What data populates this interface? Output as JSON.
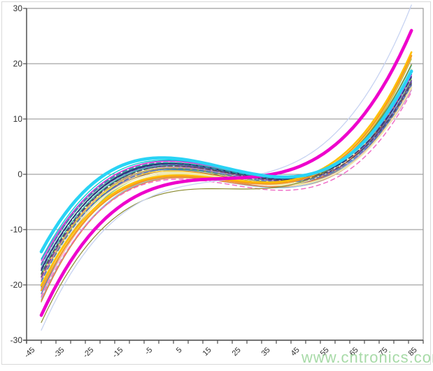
{
  "watermark": {
    "text": "www.cntronics.com",
    "color": "#98d498"
  },
  "chart_data": {
    "type": "line",
    "title": "",
    "xlabel": "",
    "ylabel": "",
    "xlim": [
      -45,
      90
    ],
    "ylim": [
      -30,
      30
    ],
    "grid": "horizontal",
    "legend": "none",
    "x_tick_step": 5,
    "x_label_ticks": [
      -45,
      -35,
      -25,
      -15,
      -5,
      5,
      15,
      25,
      35,
      45,
      55,
      65,
      75,
      85
    ],
    "y_ticks": [
      30,
      20,
      10,
      0,
      -10,
      -20,
      -30
    ],
    "axis_color": "#4d4d4d",
    "grid_color": "#8c8c8c",
    "frame_color": "#9a9a9a",
    "data_x_range": [
      -40,
      86
    ],
    "anchors_x": [
      -40,
      5,
      42,
      85
    ],
    "series_note": "Each series is a smooth cubic curve; y values given at anchor temperatures -40, 5, 42, 85 C",
    "series": [
      {
        "name": "blue",
        "color": "#3b6fd4",
        "width": 1.3,
        "dash": "",
        "y": [
          -21.6,
          0.8,
          -1.6,
          15.6
        ]
      },
      {
        "name": "royal-blue",
        "color": "#2f5496",
        "width": 1.3,
        "dash": "",
        "y": [
          -17.1,
          1.9,
          -0.8,
          16.3
        ]
      },
      {
        "name": "steel-blue",
        "color": "#8496b8",
        "width": 1.3,
        "dash": "",
        "y": [
          -16.3,
          2.1,
          -0.65,
          15.3
        ]
      },
      {
        "name": "dark-gray",
        "color": "#5a5a5a",
        "width": 1.3,
        "dash": "",
        "y": [
          -17.9,
          1.6,
          -1.0,
          16.0
        ]
      },
      {
        "name": "gray",
        "color": "#9e9e9e",
        "width": 1.2,
        "dash": "",
        "y": [
          -19.1,
          1.2,
          -1.25,
          14.9
        ]
      },
      {
        "name": "teal",
        "color": "#2fb8a8",
        "width": 1.4,
        "dash": "",
        "y": [
          -18.0,
          1.55,
          -0.9,
          18.6
        ]
      },
      {
        "name": "green",
        "color": "#3fae49",
        "width": 1.3,
        "dash": "",
        "y": [
          -19.9,
          0.95,
          -1.45,
          17.3
        ]
      },
      {
        "name": "light-green",
        "color": "#a4d65e",
        "width": 1.2,
        "dash": "",
        "y": [
          -21.1,
          0.45,
          -1.9,
          16.2
        ]
      },
      {
        "name": "purple",
        "color": "#7e5fa8",
        "width": 1.4,
        "dash": "",
        "y": [
          -20.6,
          1.05,
          -1.6,
          15.1
        ]
      },
      {
        "name": "violet",
        "color": "#9b59d0",
        "width": 1.3,
        "dash": "",
        "y": [
          -15.6,
          2.45,
          -0.45,
          14.6
        ]
      },
      {
        "name": "plum",
        "color": "#ce7bc9",
        "width": 1.2,
        "dash": "",
        "y": [
          -18.9,
          1.3,
          -1.15,
          14.3
        ]
      },
      {
        "name": "tan",
        "color": "#c49a6c",
        "width": 1.2,
        "dash": "",
        "y": [
          -23.1,
          -0.3,
          -2.35,
          15.4
        ]
      },
      {
        "name": "brown",
        "color": "#a0622d",
        "width": 1.2,
        "dash": "",
        "y": [
          -20.3,
          0.65,
          -1.7,
          16.8
        ]
      },
      {
        "name": "salmon",
        "color": "#f4a6a6",
        "width": 1.2,
        "dash": "",
        "y": [
          -21.9,
          0.15,
          -2.1,
          15.0
        ]
      },
      {
        "name": "light-blue",
        "color": "#8fc3e8",
        "width": 1.2,
        "dash": "",
        "y": [
          -22.6,
          -0.55,
          -2.45,
          16.5
        ]
      },
      {
        "name": "slate",
        "color": "#6e6ec0",
        "width": 1.3,
        "dash": "",
        "y": [
          -16.9,
          1.75,
          -0.85,
          15.7
        ]
      },
      {
        "name": "navy",
        "color": "#1f3864",
        "width": 1.4,
        "dash": "",
        "y": [
          -17.3,
          2.0,
          -0.8,
          17.0
        ]
      },
      {
        "name": "olive",
        "color": "#b5b542",
        "width": 1.3,
        "dash": "",
        "y": [
          -19.4,
          1.15,
          -1.35,
          19.7
        ]
      },
      {
        "name": "aqua",
        "color": "#00ced1",
        "width": 1.3,
        "dash": "",
        "y": [
          -15.3,
          2.55,
          -0.55,
          17.2
        ]
      },
      {
        "name": "orange-thin",
        "color": "#e87d3c",
        "width": 1.3,
        "dash": "",
        "y": [
          -22.9,
          -0.65,
          -2.2,
          17.7
        ]
      },
      {
        "name": "magenta-thin",
        "color": "#d633d6",
        "width": 1.4,
        "dash": "",
        "y": [
          -16.1,
          2.35,
          -0.5,
          16.9
        ]
      },
      {
        "name": "yellow",
        "color": "#ffd24a",
        "width": 1.8,
        "dash": "",
        "y": [
          -18.4,
          0.6,
          -1.5,
          20.1
        ]
      },
      {
        "name": "cream",
        "color": "#f2ecc0",
        "width": 2.5,
        "dash": "",
        "y": [
          -19.6,
          0.3,
          -1.8,
          17.9
        ]
      },
      {
        "name": "cream-2",
        "color": "#eee8aa",
        "width": 2.2,
        "dash": "",
        "y": [
          -20.9,
          0.1,
          -2.0,
          14.7
        ]
      },
      {
        "name": "navy-dashed",
        "color": "#2b3a7e",
        "width": 1.6,
        "dash": "7 4",
        "y": [
          -17.4,
          1.9,
          -0.9,
          16.6
        ]
      },
      {
        "name": "purple-dashed",
        "color": "#6a3fa0",
        "width": 1.6,
        "dash": "7 4",
        "y": [
          -18.6,
          1.5,
          -1.2,
          15.9
        ]
      },
      {
        "name": "teal-dashed",
        "color": "#1f9e9e",
        "width": 1.6,
        "dash": "6 4",
        "y": [
          -16.4,
          2.1,
          -0.7,
          17.9
        ]
      },
      {
        "name": "blue-dashed",
        "color": "#4472c4",
        "width": 1.4,
        "dash": "6 4",
        "y": [
          -19.4,
          1.0,
          -1.4,
          15.2
        ]
      },
      {
        "name": "gray-dashed",
        "color": "#4d4d4d",
        "width": 1.3,
        "dash": "5 4",
        "y": [
          -18.1,
          1.5,
          -1.05,
          15.5
        ]
      },
      {
        "name": "pink-dashed",
        "color": "#f06ec8",
        "width": 1.5,
        "dash": "6 5",
        "y": [
          -22.2,
          -0.9,
          -2.9,
          13.9
        ]
      },
      {
        "name": "gold",
        "color": "#ffc000",
        "width": 2.6,
        "dash": "",
        "y": [
          -20.1,
          -0.2,
          -1.3,
          20.9
        ]
      },
      {
        "name": "orange",
        "color": "#f59b22",
        "width": 2.2,
        "dash": "",
        "y": [
          -21.0,
          -0.4,
          -1.6,
          20.3
        ]
      },
      {
        "name": "olive-low",
        "color": "#8a8a2e",
        "width": 1.2,
        "dash": "",
        "y": [
          -26.8,
          -3.1,
          -2.2,
          18.8
        ]
      },
      {
        "name": "lavender",
        "color": "#c7d3f2",
        "width": 1.3,
        "dash": "",
        "y": [
          -28.2,
          -2.6,
          1.2,
          29.3
        ]
      },
      {
        "name": "magenta-thick",
        "color": "#ee00cc",
        "width": 4.6,
        "dash": "",
        "y": [
          -25.5,
          -1.6,
          0.4,
          24.8
        ]
      },
      {
        "name": "cyan-thick",
        "color": "#29d3f5",
        "width": 4.6,
        "dash": "",
        "y": [
          -14.0,
          2.9,
          -0.5,
          17.6
        ]
      }
    ]
  }
}
